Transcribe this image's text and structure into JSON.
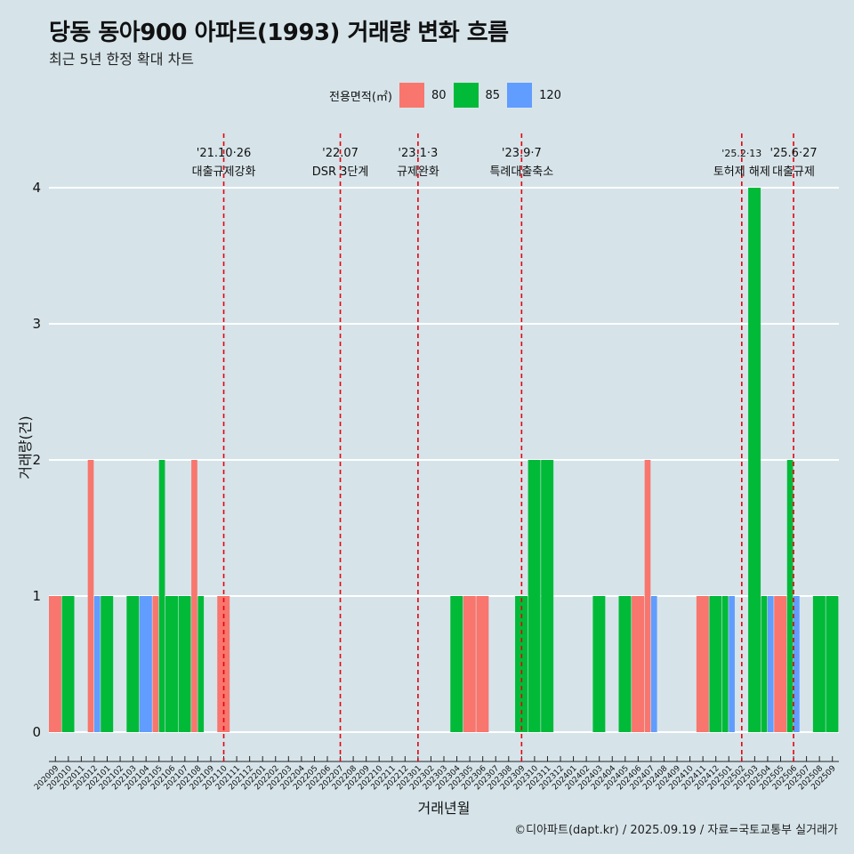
{
  "title": "당동 동아900 아파트(1993) 거래량 변화 흐름",
  "subtitle": "최근 5년 한정 확대 차트",
  "caption": "©디아파트(dapt.kr) / 2025.09.19 / 자료=국토교통부 실거래가",
  "legend": {
    "title": "전용면적(㎡)",
    "items": [
      {
        "label": "80",
        "color": "#f8766d"
      },
      {
        "label": "85",
        "color": "#00ba38"
      },
      {
        "label": "120",
        "color": "#619cff"
      }
    ]
  },
  "chart_data": {
    "type": "bar",
    "xlabel": "거래년월",
    "ylabel": "거래량(건)",
    "ylim": [
      0,
      4
    ],
    "yticks": [
      "0",
      "1",
      "2",
      "3",
      "4"
    ],
    "categories": [
      "202009",
      "202010",
      "202011",
      "202012",
      "202101",
      "202102",
      "202103",
      "202104",
      "202105",
      "202106",
      "202107",
      "202108",
      "202109",
      "202110",
      "202111",
      "202112",
      "202201",
      "202202",
      "202203",
      "202204",
      "202205",
      "202206",
      "202207",
      "202208",
      "202209",
      "202210",
      "202211",
      "202212",
      "202301",
      "202302",
      "202303",
      "202304",
      "202305",
      "202306",
      "202307",
      "202308",
      "202309",
      "202310",
      "202311",
      "202312",
      "202401",
      "202402",
      "202403",
      "202404",
      "202405",
      "202406",
      "202407",
      "202408",
      "202409",
      "202410",
      "202411",
      "202412",
      "202501",
      "202502",
      "202503",
      "202504",
      "202505",
      "202506",
      "202507",
      "202508",
      "202509"
    ],
    "series": [
      {
        "name": "80",
        "color": "#f8766d",
        "values": [
          1,
          0,
          0,
          2,
          0,
          0,
          0,
          0,
          1,
          0,
          0,
          2,
          0,
          1,
          0,
          0,
          0,
          0,
          0,
          0,
          0,
          0,
          0,
          0,
          0,
          0,
          0,
          0,
          0,
          0,
          0,
          0,
          1,
          1,
          0,
          0,
          0,
          0,
          0,
          0,
          0,
          0,
          0,
          0,
          0,
          1,
          2,
          0,
          0,
          0,
          1,
          0,
          0,
          0,
          0,
          0,
          1,
          0,
          0,
          0,
          0
        ]
      },
      {
        "name": "85",
        "color": "#00ba38",
        "values": [
          0,
          1,
          0,
          0,
          1,
          0,
          1,
          0,
          2,
          1,
          1,
          1,
          0,
          0,
          0,
          0,
          0,
          0,
          0,
          0,
          0,
          0,
          0,
          0,
          0,
          0,
          0,
          0,
          0,
          0,
          0,
          1,
          0,
          0,
          0,
          0,
          1,
          2,
          2,
          0,
          0,
          0,
          1,
          0,
          1,
          0,
          0,
          0,
          0,
          0,
          0,
          1,
          1,
          0,
          4,
          1,
          0,
          2,
          0,
          1,
          1
        ]
      },
      {
        "name": "120",
        "color": "#619cff",
        "values": [
          0,
          0,
          0,
          1,
          0,
          0,
          0,
          1,
          0,
          0,
          0,
          0,
          0,
          0,
          0,
          0,
          0,
          0,
          0,
          0,
          0,
          0,
          0,
          0,
          0,
          0,
          0,
          0,
          0,
          0,
          0,
          0,
          0,
          0,
          0,
          0,
          0,
          0,
          0,
          0,
          0,
          0,
          0,
          0,
          0,
          0,
          1,
          0,
          0,
          0,
          0,
          0,
          1,
          0,
          0,
          1,
          0,
          1,
          0,
          0,
          0
        ]
      }
    ],
    "annotations": [
      {
        "at": "202110",
        "date": "'21.10·26",
        "label": "대출규제강화"
      },
      {
        "at": "202207",
        "date": "'22.07",
        "label": "DSR 3단계"
      },
      {
        "at": "202301",
        "date": "'23.1·3",
        "label": "규제완화"
      },
      {
        "at": "202309",
        "date": "'23.9·7",
        "label": "특례대출축소"
      },
      {
        "at": "202502",
        "date": "'25.2·13",
        "label": "토허제 해제"
      },
      {
        "at": "202506",
        "date": "'25.6·27",
        "label": "대출규제"
      }
    ]
  }
}
